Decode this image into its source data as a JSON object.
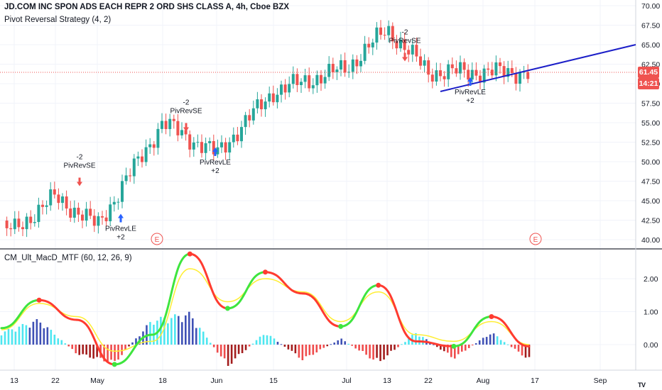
{
  "header": {
    "symbol": "JD.COM INC SPON ADS EACH REPR 2 ORD SHS CLASS A, 4h, Cboe BZX",
    "strategy": "Pivot Reversal Strategy (4, 2)",
    "indicator": "CM_Ult_MacD_MTF (60, 12, 26, 9)"
  },
  "price_tags": {
    "last_price": "61.45",
    "countdown": "14:21"
  },
  "colors": {
    "bull": "#26a69a",
    "bear": "#ef5350",
    "trendline": "#1c1fc8",
    "macd_up": "#3ee53e",
    "macd_down": "#ff3b30",
    "signal": "#ffee33",
    "hist_pos_strong": "#4de6f0",
    "hist_pos_weak": "#3f51b5",
    "hist_neg_strong": "#ef4c4c",
    "hist_neg_weak": "#a31d1d",
    "grid": "#f0f3fa",
    "axis_text": "#131722",
    "tag_red": "#ef5350"
  },
  "chart_data": [
    {
      "type": "candlestick",
      "title": "JD.COM INC SPON ADS EACH REPR 2 ORD SHS CLASS A, 4h, Cboe BZX",
      "ylim": [
        39,
        71
      ],
      "y_ticks": [
        "70.00",
        "67.50",
        "65.00",
        "62.50",
        "60.00",
        "57.50",
        "55.00",
        "52.50",
        "50.00",
        "47.50",
        "45.00",
        "42.50",
        "40.00"
      ],
      "x_ticks": [
        "13",
        "22",
        "May",
        "18",
        "Jun",
        "15",
        "Jul",
        "13",
        "22",
        "Aug",
        "17",
        "Sep"
      ],
      "grid": true,
      "legend_position": "top-left",
      "last_price_line": 61.45,
      "close_path": [
        [
          "13",
          41.3
        ],
        [
          "22",
          45.5
        ],
        [
          "May",
          41.8
        ],
        [
          "18",
          55.0
        ],
        [
          "Jun",
          51.0
        ],
        [
          "15",
          59.0
        ],
        [
          "Jul",
          62.0
        ],
        [
          "13",
          67.0
        ],
        [
          "22",
          61.5
        ],
        [
          "Aug",
          61.5
        ],
        [
          "17",
          61.45
        ]
      ],
      "signals": [
        {
          "type": "short",
          "label": "PivRevSE",
          "qty": "-2",
          "at": "22",
          "price": 46.5
        },
        {
          "type": "long",
          "label": "PivRevLE",
          "qty": "+2",
          "at": "May",
          "price": 43.5
        },
        {
          "type": "short",
          "label": "PivRevSE",
          "qty": "-2",
          "at": "18",
          "price": 53.5
        },
        {
          "type": "long",
          "label": "PivRevLE",
          "qty": "+2",
          "at": "Jun",
          "price": 52.0
        },
        {
          "type": "short",
          "label": "PivRevSE",
          "qty": "-2",
          "at": "13",
          "price": 62.5
        },
        {
          "type": "long",
          "label": "PivRevLE",
          "qty": "+2",
          "at": "Aug",
          "price": 61.0
        }
      ],
      "earnings_markers": [
        {
          "label": "E",
          "at": "May"
        },
        {
          "label": "E",
          "at": "17"
        }
      ],
      "trendline": {
        "from": [
          "22",
          59.0
        ],
        "to": [
          "Sep",
          65.0
        ]
      }
    },
    {
      "type": "line",
      "title": "CM_Ult_MacD_MTF (60, 12, 26, 9)",
      "ylim": [
        -0.75,
        2.85
      ],
      "y_ticks": [
        "2.00",
        "1.00",
        "0.00"
      ],
      "series": [
        {
          "values": [
            0.5,
            1.35,
            0.75,
            -0.6,
            0.3,
            2.75,
            1.1,
            2.2,
            1.55,
            0.55,
            1.8,
            0.1,
            -0.05,
            0.85,
            -0.05
          ]
        },
        {
          "values": [
            0.45,
            1.25,
            0.85,
            -0.2,
            0.1,
            2.3,
            1.3,
            2.0,
            1.6,
            0.7,
            1.6,
            0.3,
            0.1,
            0.7,
            0.0
          ]
        }
      ],
      "histogram": [
        0.4,
        0.8,
        -0.3,
        -0.6,
        0.8,
        1.0,
        -0.7,
        0.4,
        -0.5,
        0.2,
        -0.6,
        0.4,
        -0.45,
        0.4,
        -0.5
      ]
    }
  ]
}
